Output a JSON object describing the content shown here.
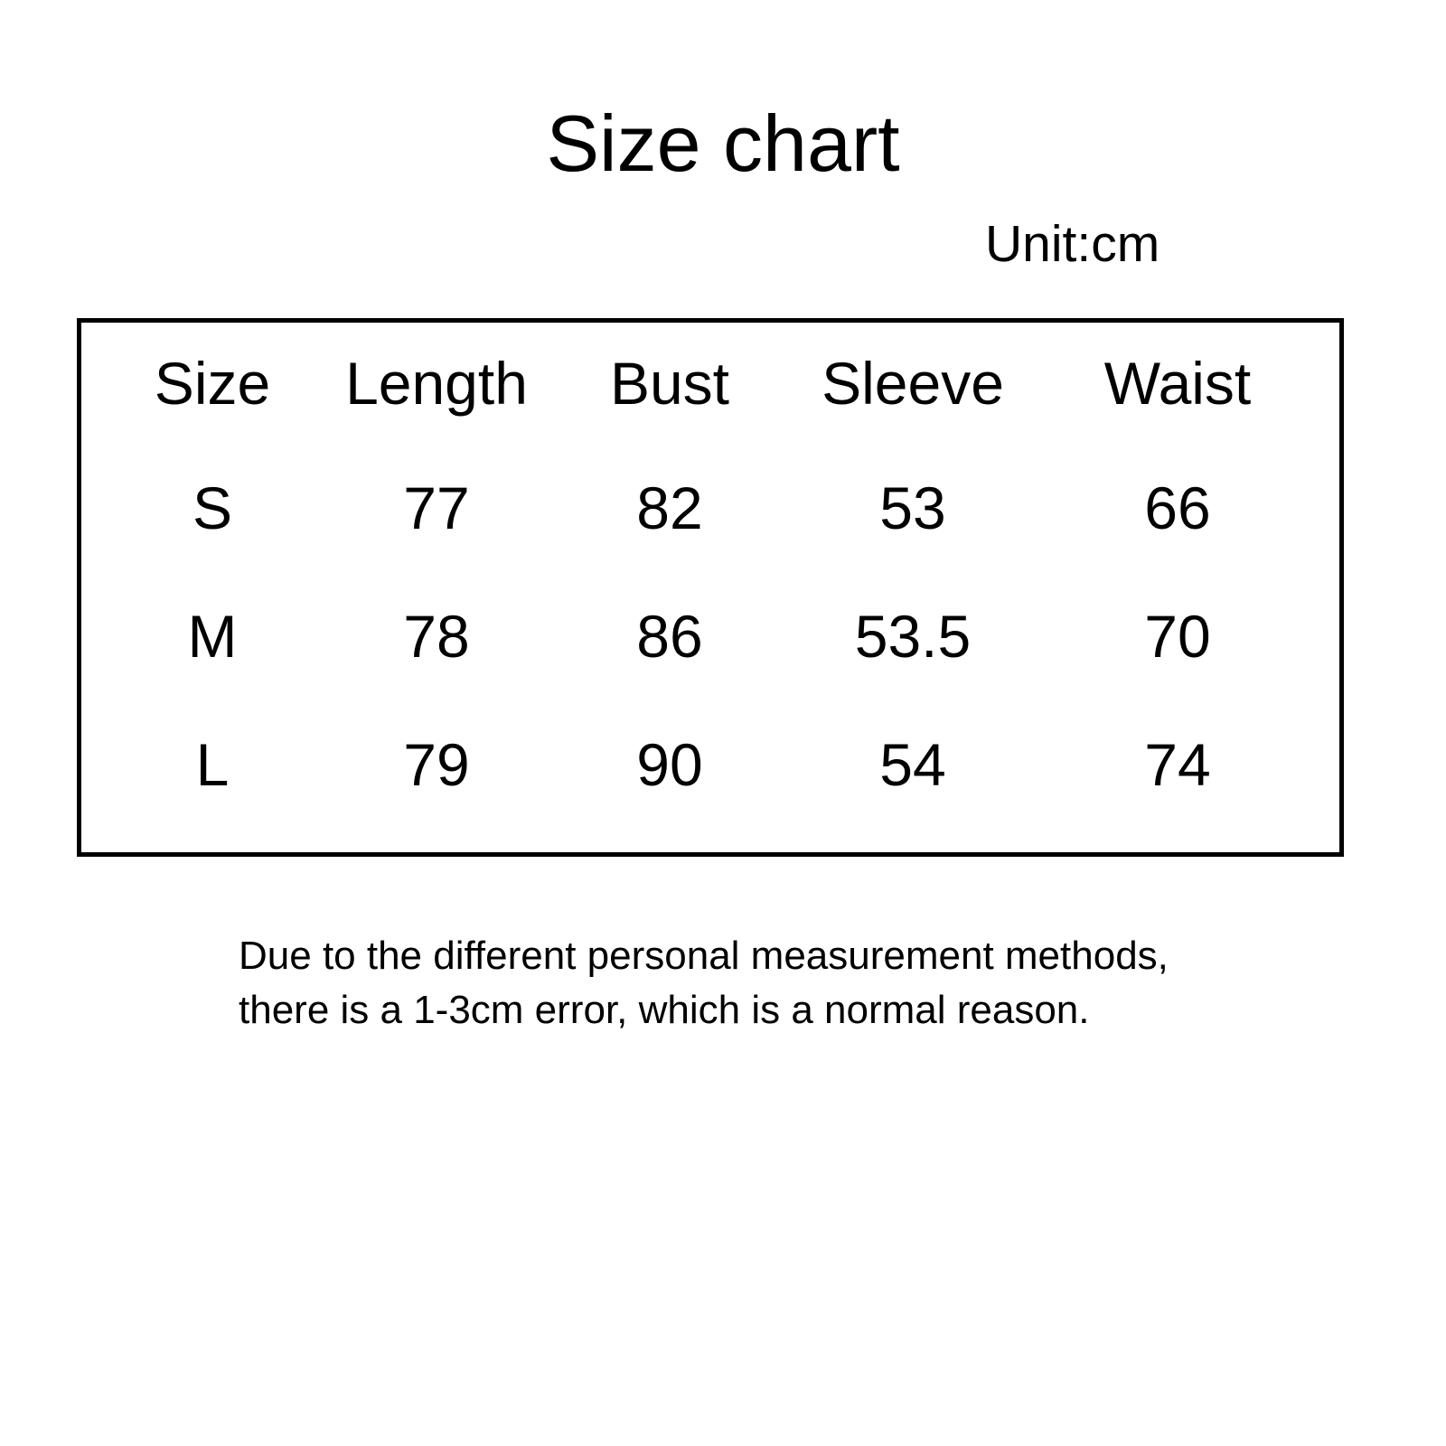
{
  "chart_data": {
    "type": "table",
    "title": "Size chart",
    "unit_label": "Unit:cm",
    "unit": "cm",
    "columns": [
      "Size",
      "Length",
      "Bust",
      "Sleeve",
      "Waist"
    ],
    "rows": [
      [
        "S",
        "77",
        "82",
        "53",
        "66"
      ],
      [
        "M",
        "78",
        "86",
        "53.5",
        "70"
      ],
      [
        "L",
        "79",
        "90",
        "54",
        "74"
      ]
    ],
    "note_lines": [
      "Due to the different personal measurement methods,",
      "there is a 1-3cm error, which is a normal reason."
    ],
    "layout_hints": {
      "border_color": "#000000",
      "background_color": "#ffffff",
      "text_color": "#000000",
      "grid": "outer border only, no inner cell lines"
    }
  }
}
